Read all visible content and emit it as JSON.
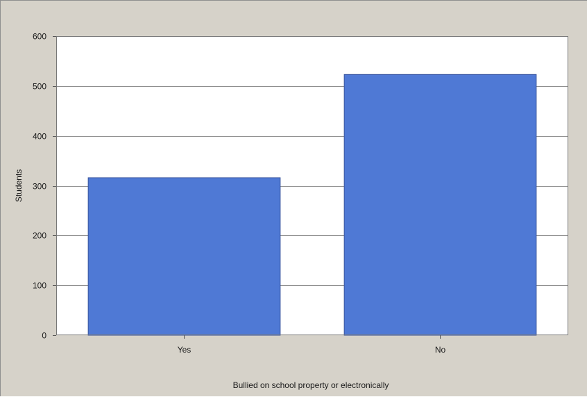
{
  "chart_data": {
    "type": "bar",
    "categories": [
      "Yes",
      "No"
    ],
    "values": [
      316,
      523
    ],
    "title": "",
    "xlabel": "Bullied on school property or electronically",
    "ylabel": "Students",
    "ylim": [
      0,
      600
    ],
    "yticks": [
      0,
      100,
      200,
      300,
      400,
      500,
      600
    ],
    "grid": true,
    "legend": "none"
  },
  "colors": {
    "bar_fill": "#4f79d5",
    "bar_stroke": "#36519a",
    "panel_background": "#d6d2c9",
    "plot_background": "#ffffff",
    "gridline": "#8a8a8a"
  }
}
